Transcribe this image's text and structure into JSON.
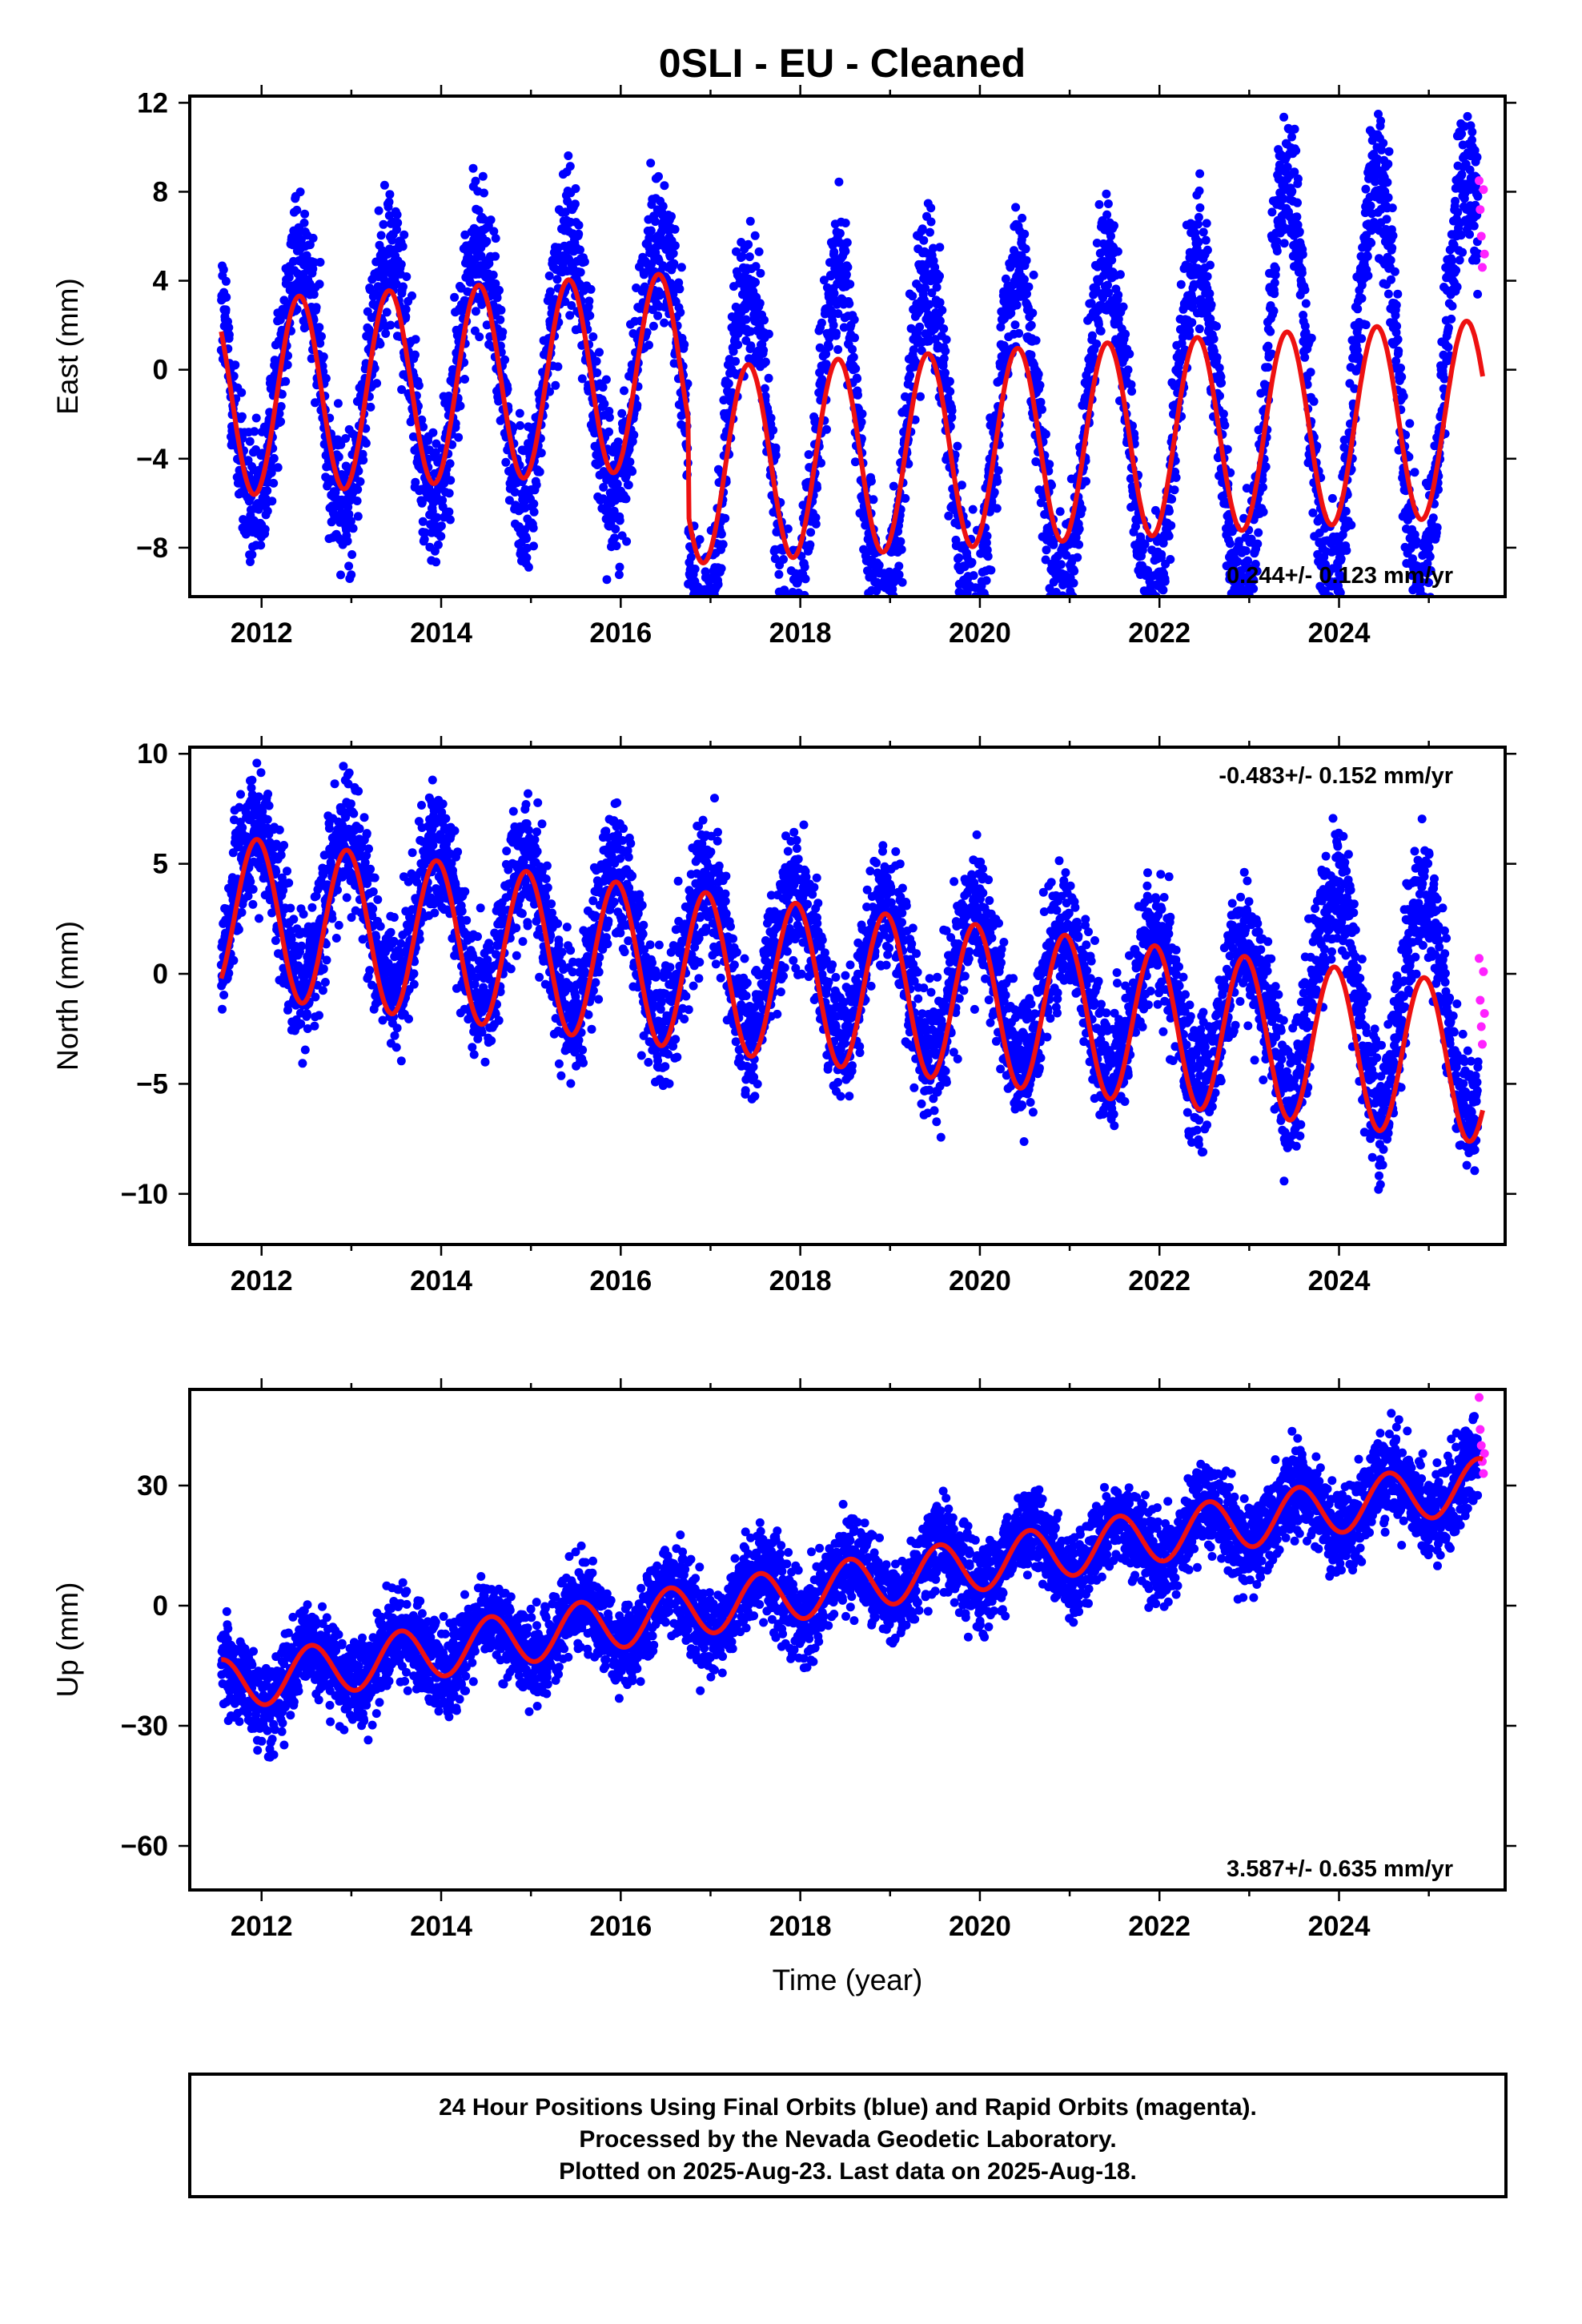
{
  "title": "0SLI  - EU - Cleaned",
  "footer": {
    "lines": [
      "24 Hour Positions Using Final Orbits (blue) and Rapid Orbits (magenta).",
      "Processed by the Nevada Geodetic Laboratory.",
      "Plotted on 2025-Aug-23. Last data on 2025-Aug-18."
    ]
  },
  "colors": {
    "final_orbits": "#0000ff",
    "rapid_orbits": "#ff22ff",
    "model_fit": "#ee1111",
    "frame": "#000000"
  },
  "chart_data": [
    {
      "type": "scatter",
      "ylabel": "East (mm)",
      "xlabel": "",
      "xlim": [
        2011.2,
        2025.85
      ],
      "ylim": [
        -10.2,
        12.3
      ],
      "xticks": [
        "2012",
        "2014",
        "2016",
        "2018",
        "2020",
        "2022",
        "2024"
      ],
      "yticks": [
        "12",
        "8",
        "4",
        "0",
        "−4",
        "−8"
      ],
      "ytick_values": [
        12,
        8,
        4,
        0,
        -4,
        -8
      ],
      "rate_label": "0.244+/- 0.123 mm/yr",
      "rate_position": "bottom-right",
      "model": {
        "offset_start": -1.3,
        "trend": 0.244,
        "step_epoch": 2016.75,
        "step": -4.3,
        "annual_amp": 4.4,
        "annual_peak": 0.42
      },
      "data": {
        "start": 2011.55,
        "end": 2025.55,
        "scatter_mm": 1.6,
        "offset_vs_model": [
          0.4,
          3.3,
          3.0
        ]
      },
      "rapid": {
        "x_start": 2025.56,
        "x_end": 2025.62,
        "y": [
          8.5,
          7.2,
          6.0,
          4.6,
          8.1,
          5.2
        ]
      }
    },
    {
      "type": "scatter",
      "ylabel": "North (mm)",
      "xlabel": "",
      "xlim": [
        2011.2,
        2025.85
      ],
      "ylim": [
        -12.3,
        10.3
      ],
      "xticks": [
        "2012",
        "2014",
        "2016",
        "2018",
        "2020",
        "2022",
        "2024"
      ],
      "yticks": [
        "10",
        "5",
        "0",
        "−5",
        "−10"
      ],
      "ytick_values": [
        10,
        5,
        0,
        -5,
        -10
      ],
      "rate_label": "-0.483+/- 0.152 mm/yr",
      "rate_position": "top-right",
      "model": {
        "offset_start": 2.7,
        "trend": -0.483,
        "annual_amp": 3.6,
        "annual_peak": 0.95
      },
      "data": {
        "start": 2011.55,
        "end": 2025.55,
        "scatter_mm": 1.5,
        "offset_vs_model": [
          0.8,
          -0.4,
          3.2
        ]
      },
      "rapid": {
        "x_start": 2025.56,
        "x_end": 2025.62,
        "y": [
          0.7,
          -1.2,
          -2.4,
          -3.2,
          0.1,
          -1.8
        ]
      }
    },
    {
      "type": "scatter",
      "ylabel": "Up (mm)",
      "xlabel": "Time (year)",
      "xlim": [
        2011.2,
        2025.85
      ],
      "ylim": [
        -71,
        54
      ],
      "xticks": [
        "2012",
        "2014",
        "2016",
        "2018",
        "2020",
        "2022",
        "2024"
      ],
      "yticks": [
        "30",
        "0",
        "−30",
        "−60"
      ],
      "ytick_values": [
        30,
        0,
        -30,
        -60
      ],
      "rate_label": "3.587+/- 0.635 mm/yr",
      "rate_position": "bottom-right",
      "model": {
        "offset_start": -20.0,
        "trend": 3.587,
        "annual_amp": 6.5,
        "annual_peak": 0.55
      },
      "data": {
        "start": 2011.55,
        "end": 2025.55,
        "scatter_mm": 5.5,
        "offset_vs_model": [
          0.0,
          0.0,
          0.0
        ]
      },
      "rapid": {
        "x_start": 2025.56,
        "x_end": 2025.62,
        "y": [
          52,
          44,
          40,
          36,
          33,
          38
        ]
      }
    }
  ]
}
